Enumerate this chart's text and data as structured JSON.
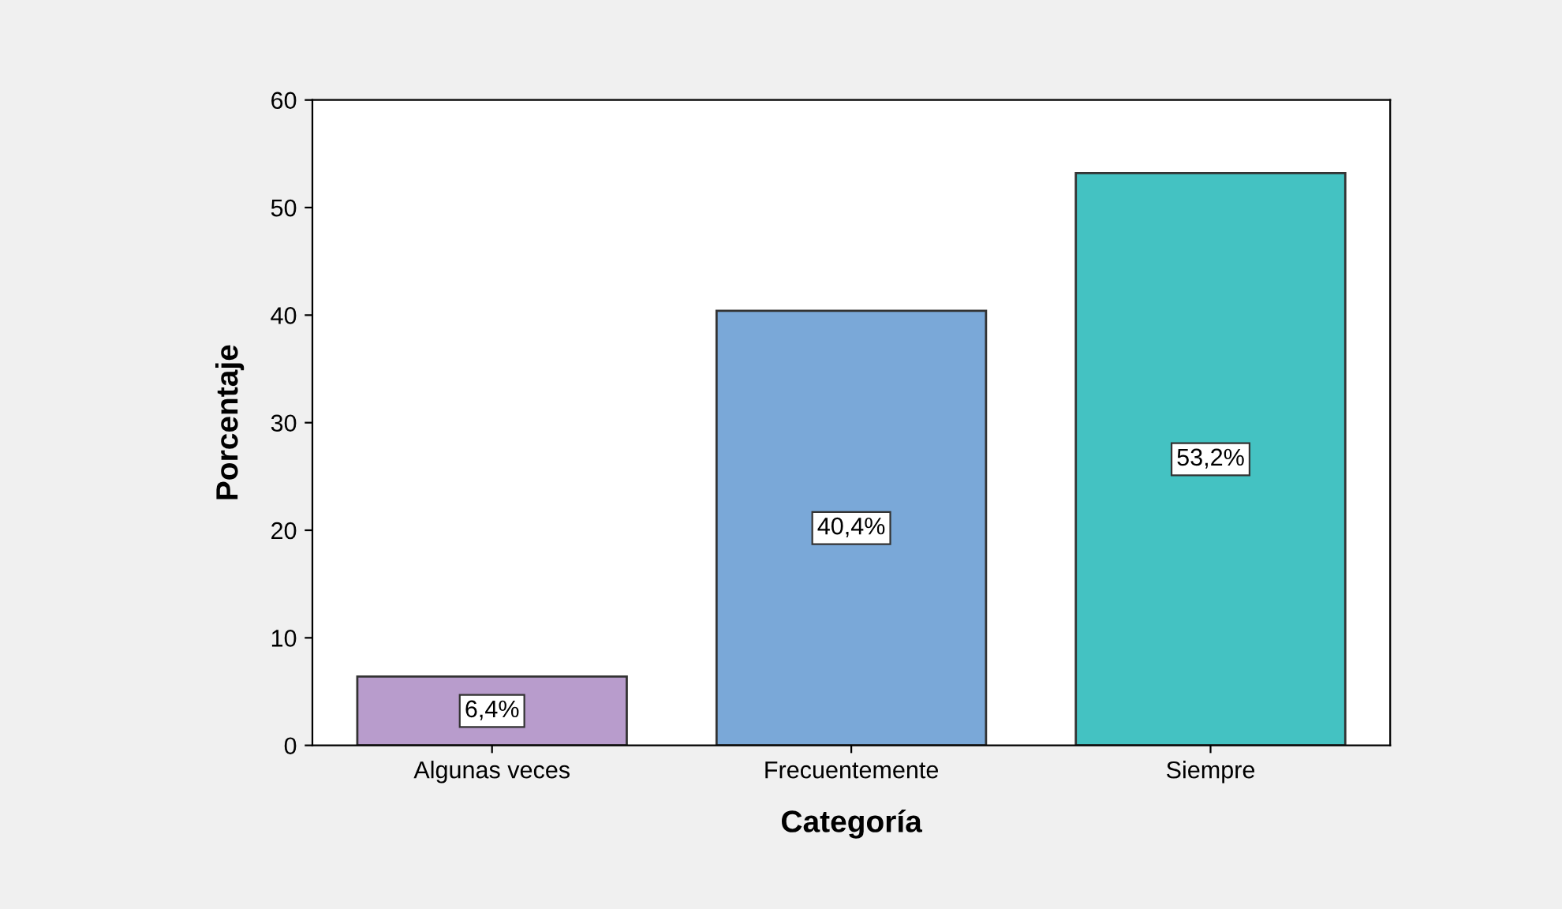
{
  "chart_data": {
    "type": "bar",
    "xlabel": "Categoría",
    "ylabel": "Porcentaje",
    "categories": [
      "Algunas veces",
      "Frecuentemente",
      "Siempre"
    ],
    "values": [
      6.4,
      40.4,
      53.2
    ],
    "colors": [
      "#b89ccc",
      "#7aa8d8",
      "#44c2c2"
    ],
    "value_labels": [
      "6,4%",
      "40,4%",
      "53,2%"
    ],
    "ylim": [
      0,
      60
    ],
    "yticks": [
      0,
      10,
      20,
      30,
      40,
      50,
      60
    ],
    "grid": false
  }
}
